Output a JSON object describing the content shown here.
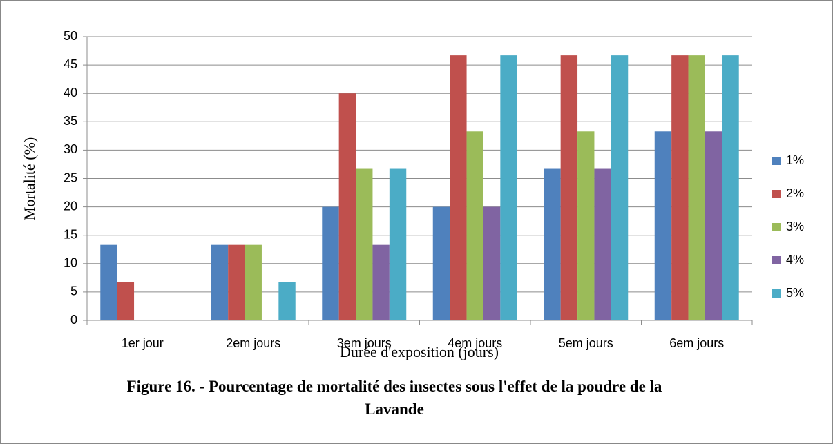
{
  "chart_data": {
    "type": "bar",
    "title": "Figure 16. - Pourcentage de mortalité des insectes sous l'effet de la poudre de la Lavande",
    "xlabel": "Durée d'exposition (jours)",
    "ylabel": "Mortalité (%)",
    "categories": [
      "1er jour",
      "2em jours",
      "3em jours",
      "4em jours",
      "5em jours",
      "6em jours"
    ],
    "series": [
      {
        "name": "1%",
        "color": "#4f81bd",
        "values": [
          13.3,
          13.3,
          20,
          20,
          26.7,
          33.3
        ]
      },
      {
        "name": "2%",
        "color": "#c0504d",
        "values": [
          6.7,
          13.3,
          40,
          46.7,
          46.7,
          46.7
        ]
      },
      {
        "name": "3%",
        "color": "#9bbb59",
        "values": [
          0,
          13.3,
          26.7,
          33.3,
          33.3,
          46.7
        ]
      },
      {
        "name": "4%",
        "color": "#8064a2",
        "values": [
          0,
          0,
          13.3,
          20,
          26.7,
          33.3
        ]
      },
      {
        "name": "5%",
        "color": "#4bacc6",
        "values": [
          0,
          6.7,
          26.7,
          46.7,
          46.7,
          46.7
        ]
      }
    ],
    "ylim": [
      0,
      50
    ],
    "yticks": [
      0,
      5,
      10,
      15,
      20,
      25,
      30,
      35,
      40,
      45,
      50
    ],
    "grid": true,
    "legend": "right"
  }
}
